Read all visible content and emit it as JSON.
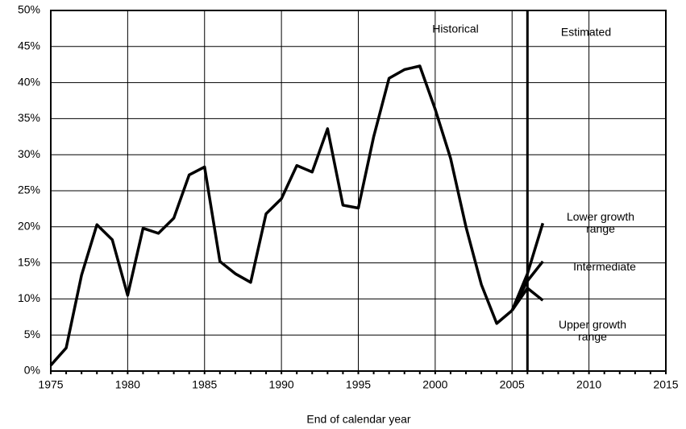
{
  "chart_data": {
    "type": "line",
    "xlabel": "End of calendar year",
    "annotations": [
      "Historical",
      "Estimated"
    ],
    "divider_x": 2006,
    "xlim": [
      1975,
      2015
    ],
    "xticks": [
      1975,
      1980,
      1985,
      1990,
      1995,
      2000,
      2005,
      2010,
      2015
    ],
    "ylim": [
      0,
      50
    ],
    "yticks": [
      {
        "value": 0,
        "label": "0%"
      },
      {
        "value": 5,
        "label": "5%"
      },
      {
        "value": 10,
        "label": "10%"
      },
      {
        "value": 15,
        "label": "15%"
      },
      {
        "value": 20,
        "label": "20%"
      },
      {
        "value": 25,
        "label": "25%"
      },
      {
        "value": 30,
        "label": "30%"
      },
      {
        "value": 35,
        "label": "35%"
      },
      {
        "value": 40,
        "label": "40%"
      },
      {
        "value": 45,
        "label": "45%"
      },
      {
        "value": 50,
        "label": "50%"
      }
    ],
    "grid": true,
    "series": [
      {
        "color": "#000000",
        "x": [
          1975,
          1976,
          1977,
          1978,
          1979,
          1980,
          1981,
          1982,
          1983,
          1984,
          1985,
          1986,
          1987,
          1988,
          1989,
          1990,
          1991,
          1992,
          1993,
          1994,
          1995,
          1996,
          1997,
          1998,
          1999,
          2000,
          2001,
          2002,
          2003,
          2004,
          2005
        ],
        "values": [
          0.8,
          3.2,
          13.3,
          20.3,
          18.2,
          10.5,
          19.8,
          19.1,
          21.2,
          27.2,
          28.3,
          15.2,
          13.5,
          12.3,
          21.8,
          23.9,
          28.5,
          27.6,
          33.6,
          23.0,
          22.6,
          32.5,
          40.6,
          41.8,
          42.3,
          36.3,
          29.5,
          20.0,
          12.0,
          6.6,
          8.4
        ]
      },
      {
        "name": "Lower growth range",
        "color": "#000000",
        "x": [
          2005,
          2006,
          2007
        ],
        "values": [
          8.4,
          13.5,
          20.5
        ]
      },
      {
        "name": "Intermediate",
        "color": "#000000",
        "x": [
          2005,
          2006,
          2007
        ],
        "values": [
          8.4,
          12.5,
          15.2
        ]
      },
      {
        "name": "Upper growth range",
        "color": "#000000",
        "x": [
          2005,
          2006,
          2007
        ],
        "values": [
          8.4,
          11.5,
          9.8
        ]
      }
    ]
  }
}
